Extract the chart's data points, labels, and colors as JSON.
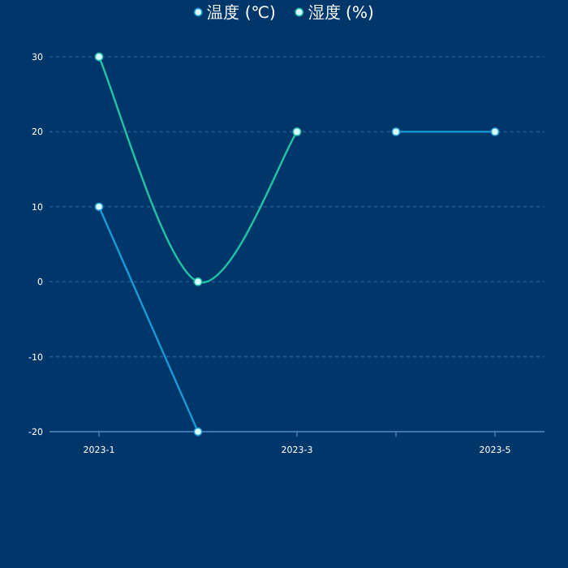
{
  "chart_data": {
    "type": "line",
    "categories": [
      "2023-1",
      null,
      "2023-3",
      null,
      "2023-5"
    ],
    "series": [
      {
        "name": "温度 (℃)",
        "color": "#1a9ad6",
        "values": [
          10,
          -20,
          null,
          20,
          20
        ]
      },
      {
        "name": "湿度 (%)",
        "color": "#22c4a8",
        "values": [
          30,
          0,
          20,
          null,
          null
        ]
      }
    ],
    "ylim": [
      -20,
      30
    ],
    "yticks": [
      -20,
      -10,
      0,
      10,
      20,
      30
    ],
    "grid": "y",
    "legend": "top",
    "marker": "circle",
    "line_style": "solid"
  }
}
